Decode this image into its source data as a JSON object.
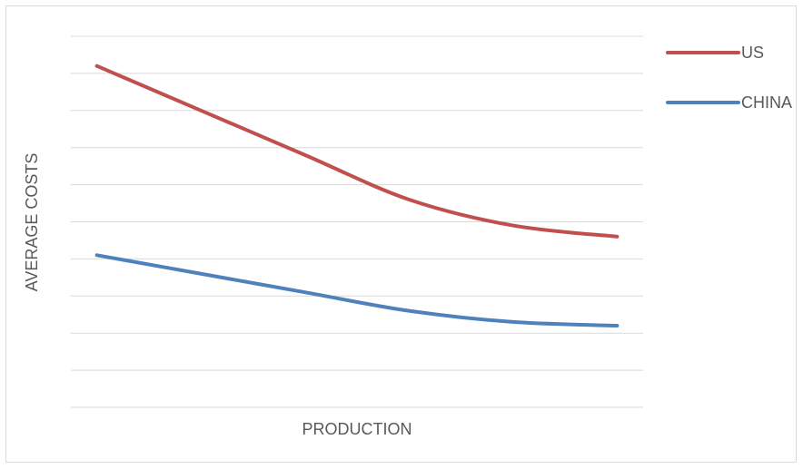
{
  "chart_data": {
    "type": "line",
    "title": "",
    "xlabel": "PRODUCTION",
    "ylabel": "AVERAGE COSTS",
    "x": [
      1,
      2,
      3,
      4,
      5,
      6
    ],
    "xlim": [
      0.75,
      6.25
    ],
    "ylim": [
      0,
      10
    ],
    "grid": true,
    "axis_tick_labels": false,
    "legend_position": "top-right",
    "series": [
      {
        "name": "US",
        "color": "#C0504D",
        "values": [
          9.2,
          8.0,
          6.8,
          5.6,
          4.9,
          4.6
        ]
      },
      {
        "name": "CHINA",
        "color": "#4F81BD",
        "values": [
          4.1,
          3.6,
          3.1,
          2.6,
          2.3,
          2.2
        ]
      }
    ],
    "gridline_color": "#d9d9d9"
  }
}
